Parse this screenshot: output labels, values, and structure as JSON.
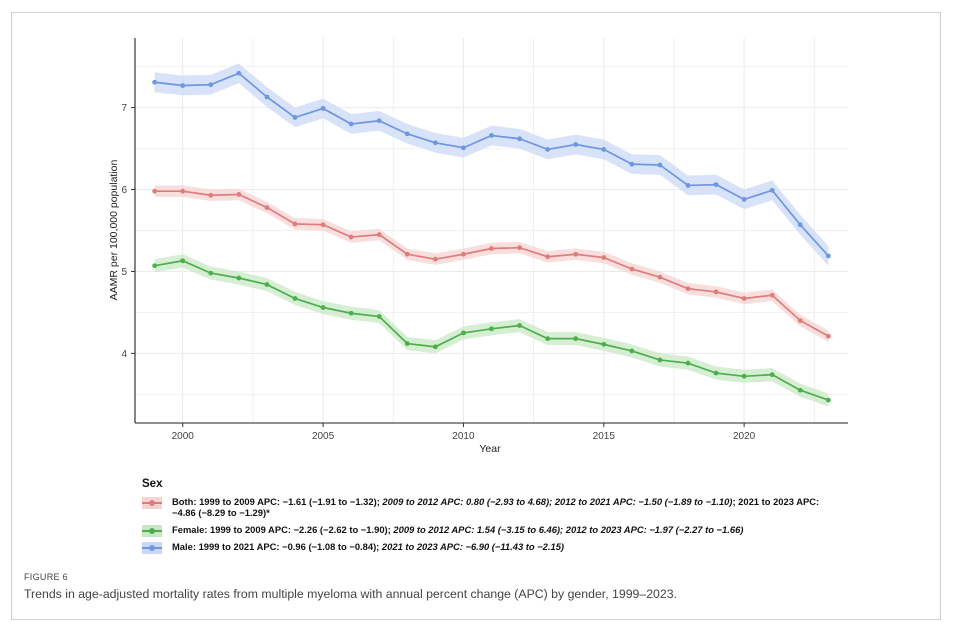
{
  "chart_data": {
    "type": "line",
    "title": "",
    "xlabel": "Year",
    "ylabel": "AAMR per 100,000 population",
    "xlim": [
      1998.3,
      2023.7
    ],
    "ylim": [
      3.15,
      7.85
    ],
    "x_ticks": [
      2000,
      2005,
      2010,
      2015,
      2020
    ],
    "y_ticks": [
      4,
      5,
      6,
      7
    ],
    "grid": true,
    "legend_title": "Sex",
    "legend_position": "bottom",
    "x": [
      1999,
      2000,
      2001,
      2002,
      2003,
      2004,
      2005,
      2006,
      2007,
      2008,
      2009,
      2010,
      2011,
      2012,
      2013,
      2014,
      2015,
      2016,
      2017,
      2018,
      2019,
      2020,
      2021,
      2022,
      2023
    ],
    "series": [
      {
        "name": "Male",
        "color": "#6d97e0",
        "band_color": "#cbd8f5",
        "values": [
          7.31,
          7.27,
          7.28,
          7.42,
          7.13,
          6.88,
          6.99,
          6.8,
          6.84,
          6.68,
          6.57,
          6.51,
          6.66,
          6.62,
          6.49,
          6.55,
          6.49,
          6.31,
          6.3,
          6.05,
          6.06,
          5.88,
          5.99,
          5.57,
          5.19
        ],
        "band": 0.12
      },
      {
        "name": "Both",
        "color": "#e07c7b",
        "band_color": "#f6d3d2",
        "values": [
          5.98,
          5.98,
          5.93,
          5.94,
          5.78,
          5.58,
          5.57,
          5.42,
          5.45,
          5.21,
          5.15,
          5.21,
          5.28,
          5.29,
          5.18,
          5.21,
          5.17,
          5.03,
          4.93,
          4.79,
          4.75,
          4.67,
          4.71,
          4.4,
          4.21
        ],
        "band": 0.07
      },
      {
        "name": "Female",
        "color": "#4daf4a",
        "band_color": "#c8e8c5",
        "values": [
          5.07,
          5.13,
          4.98,
          4.92,
          4.84,
          4.67,
          4.56,
          4.49,
          4.45,
          4.12,
          4.08,
          4.25,
          4.3,
          4.34,
          4.18,
          4.18,
          4.11,
          4.03,
          3.92,
          3.88,
          3.76,
          3.72,
          3.74,
          3.55,
          3.43
        ],
        "band": 0.08
      }
    ]
  },
  "legend": {
    "title": "Sex",
    "both": {
      "a": "Both: 1999 to 2009 APC: −1.61 (−1.91 to −1.32); ",
      "b": "2009 to 2012 APC: 0.80 (−2.93 to 4.68); 2012 to 2021 APC: −1.50 (−1.89 to −1.10)",
      "c": "; 2021 to 2023 APC: −4.86 (−8.29 to −1.29)*"
    },
    "female": {
      "a": "Female: 1999 to 2009 APC: −2.26 (−2.62 to −1.90); ",
      "b": "2009 to 2012 APC: 1.54 (−3.15 to 6.46); 2012 to 2023 APC: −1.97 (−2.27 to −1.66)",
      "c": ""
    },
    "male": {
      "a": "Male: 1999 to 2021 APC: −0.96 (−1.08 to −0.84); ",
      "b": "2021 to 2023 APC: −6.90 (−11.43 to −2.15)",
      "c": ""
    }
  },
  "figure": {
    "label": "FIGURE 6",
    "caption": "Trends in age-adjusted mortality rates from multiple myeloma with annual percent change (APC) by gender, 1999–2023."
  }
}
